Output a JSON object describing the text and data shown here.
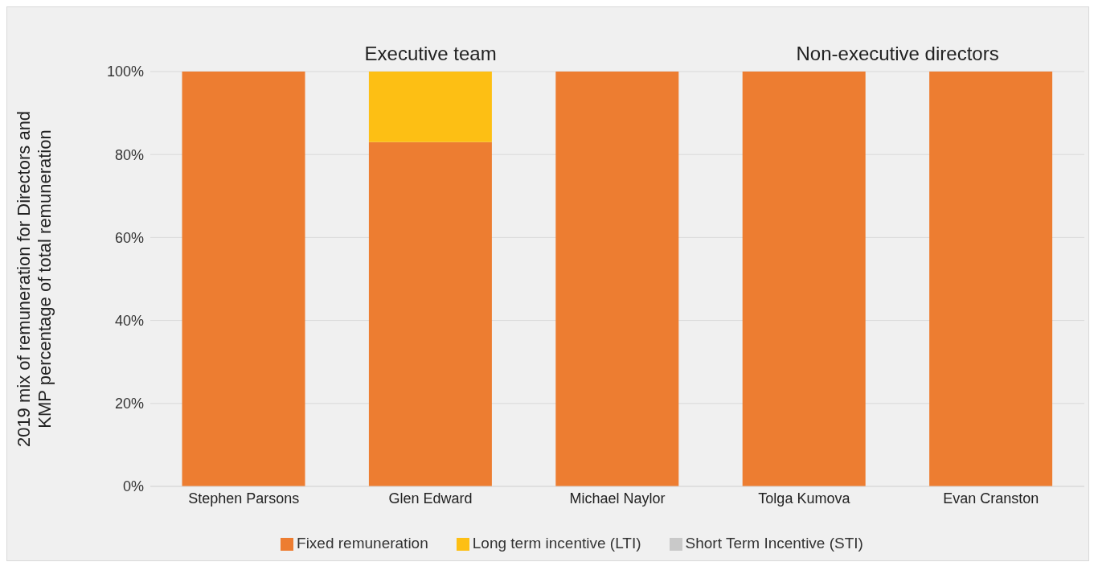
{
  "chart_data": {
    "type": "bar",
    "stacked": true,
    "ylabel": "2019 mix of remuneration for Directors and KMP percentage of total remuneration",
    "categories": [
      "Stephen Parsons",
      "Glen Edward",
      "Michael Naylor",
      "Tolga Kumova",
      "Evan Cranston"
    ],
    "series": [
      {
        "name": "Fixed remuneration",
        "color": "#ed7d31",
        "values": [
          100,
          83,
          100,
          100,
          100
        ]
      },
      {
        "name": "Long term incentive (LTI)",
        "color": "#fdbf14",
        "values": [
          0,
          17,
          0,
          0,
          0
        ]
      },
      {
        "name": "Short Term Incentive (STI)",
        "color": "#c9c9c9",
        "values": [
          0,
          0,
          0,
          0,
          0
        ]
      }
    ],
    "annotations": [
      "Executive team",
      "Non-executive directors"
    ],
    "ylim": [
      0,
      100
    ],
    "yticks": [
      {
        "value": 0,
        "label": "0%"
      },
      {
        "value": 20,
        "label": "20%"
      },
      {
        "value": 40,
        "label": "40%"
      },
      {
        "value": 60,
        "label": "60%"
      },
      {
        "value": 80,
        "label": "80%"
      },
      {
        "value": 100,
        "label": "100%"
      }
    ],
    "grid": "y",
    "legend": "bottom"
  }
}
